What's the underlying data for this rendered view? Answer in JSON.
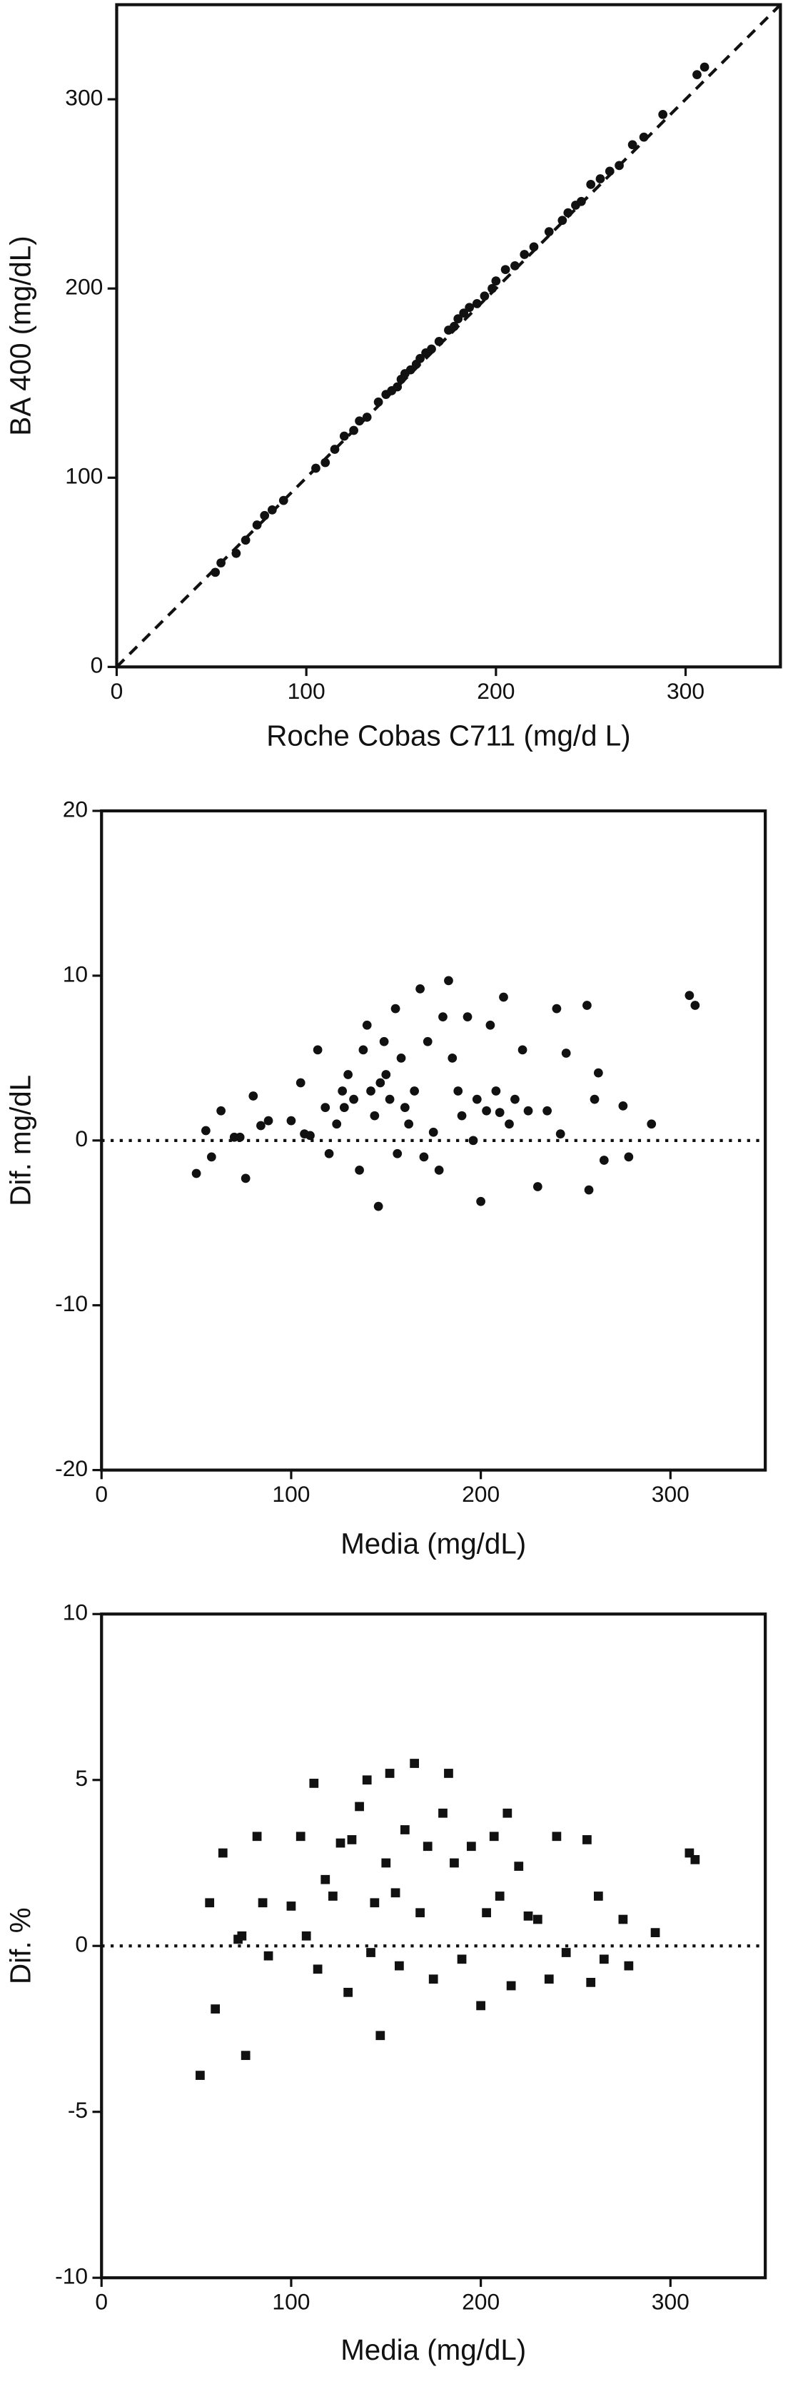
{
  "chart_data": [
    {
      "type": "scatter",
      "xlabel": "Roche Cobas C711 (mg/d L)",
      "ylabel": "BA  400 (mg/dL)",
      "marker": "circle",
      "color": "#111111",
      "reference_line": "identity",
      "xlim": [
        0,
        350
      ],
      "ylim": [
        0,
        350
      ],
      "xticks": [
        0,
        100,
        200,
        300
      ],
      "yticks": [
        0,
        100,
        200,
        300
      ],
      "x": [
        52,
        55,
        63,
        68,
        74,
        78,
        82,
        88,
        105,
        110,
        115,
        120,
        125,
        128,
        132,
        138,
        142,
        145,
        148,
        150,
        152,
        155,
        158,
        160,
        163,
        166,
        170,
        175,
        178,
        180,
        183,
        186,
        190,
        194,
        198,
        200,
        205,
        210,
        215,
        220,
        228,
        235,
        238,
        242,
        245,
        250,
        255,
        260,
        265,
        272,
        278,
        288,
        306,
        310
      ],
      "values": [
        50,
        55,
        60,
        67,
        75,
        80,
        83,
        88,
        105,
        108,
        115,
        122,
        125,
        130,
        132,
        140,
        144,
        146,
        148,
        152,
        155,
        157,
        160,
        163,
        166,
        168,
        172,
        178,
        180,
        184,
        187,
        190,
        192,
        196,
        200,
        204,
        210,
        212,
        218,
        222,
        230,
        236,
        240,
        244,
        246,
        255,
        258,
        262,
        265,
        276,
        280,
        292,
        313,
        317
      ]
    },
    {
      "type": "scatter",
      "xlabel": "Media (mg/dL)",
      "ylabel": "Dif. mg/dL",
      "marker": "circle",
      "color": "#111111",
      "reference_line": "zero",
      "xlim": [
        0,
        350
      ],
      "ylim": [
        -20,
        20
      ],
      "xticks": [
        0,
        100,
        200,
        300
      ],
      "yticks": [
        -20,
        -10,
        0,
        10,
        20
      ],
      "x": [
        50,
        55,
        58,
        63,
        70,
        73,
        76,
        80,
        84,
        88,
        100,
        105,
        107,
        110,
        114,
        118,
        120,
        124,
        127,
        128,
        130,
        133,
        136,
        138,
        140,
        142,
        144,
        146,
        147,
        149,
        150,
        152,
        155,
        156,
        158,
        160,
        162,
        165,
        168,
        170,
        172,
        175,
        178,
        180,
        183,
        185,
        188,
        190,
        193,
        196,
        198,
        200,
        203,
        205,
        208,
        210,
        212,
        215,
        218,
        222,
        225,
        230,
        235,
        240,
        242,
        245,
        256,
        257,
        260,
        262,
        265,
        275,
        278,
        290,
        310,
        313
      ],
      "values": [
        -2,
        0.6,
        -1,
        1.8,
        0.2,
        0.2,
        -2.3,
        2.7,
        0.9,
        1.2,
        1.2,
        3.5,
        0.4,
        0.3,
        5.5,
        2,
        -0.8,
        1,
        3,
        2,
        4,
        2.5,
        -1.8,
        5.5,
        7,
        3,
        1.5,
        -4,
        3.5,
        6,
        4,
        2.5,
        8,
        -0.8,
        5,
        2,
        1,
        3,
        9.2,
        -1,
        6,
        0.5,
        -1.8,
        7.5,
        9.7,
        5,
        3,
        1.5,
        7.5,
        0,
        2.5,
        -3.7,
        1.8,
        7,
        3,
        1.7,
        8.7,
        1,
        2.5,
        5.5,
        1.8,
        -2.8,
        1.8,
        8,
        0.4,
        5.3,
        8.2,
        -3,
        2.5,
        4.1,
        -1.2,
        2.1,
        -1,
        1,
        8.8,
        8.2
      ]
    },
    {
      "type": "scatter",
      "xlabel": "Media (mg/dL)",
      "ylabel": "Dif. %",
      "marker": "square",
      "color": "#111111",
      "reference_line": "zero",
      "xlim": [
        0,
        350
      ],
      "ylim": [
        -10,
        10
      ],
      "xticks": [
        0,
        100,
        200,
        300
      ],
      "yticks": [
        -10,
        -5,
        0,
        5,
        10
      ],
      "x": [
        52,
        57,
        60,
        64,
        72,
        74,
        76,
        82,
        85,
        88,
        100,
        105,
        108,
        112,
        114,
        118,
        122,
        126,
        130,
        132,
        136,
        140,
        142,
        144,
        147,
        150,
        152,
        155,
        157,
        160,
        165,
        168,
        172,
        175,
        180,
        183,
        186,
        190,
        195,
        200,
        203,
        207,
        210,
        214,
        216,
        220,
        225,
        230,
        236,
        240,
        245,
        256,
        258,
        262,
        265,
        275,
        278,
        292,
        310,
        313
      ],
      "values": [
        -3.9,
        1.3,
        -1.9,
        2.8,
        0.2,
        0.3,
        -3.3,
        3.3,
        1.3,
        -0.3,
        1.2,
        3.3,
        0.3,
        4.9,
        -0.7,
        2,
        1.5,
        3.1,
        -1.4,
        3.2,
        4.2,
        5,
        -0.2,
        1.3,
        -2.7,
        2.5,
        5.2,
        1.6,
        -0.6,
        3.5,
        5.5,
        1,
        3,
        -1,
        4,
        5.2,
        2.5,
        -0.4,
        3,
        -1.8,
        1,
        3.3,
        1.5,
        4,
        -1.2,
        2.4,
        0.9,
        0.8,
        -1,
        3.3,
        -0.2,
        3.2,
        -1.1,
        1.5,
        -0.4,
        0.8,
        -0.6,
        0.4,
        2.8,
        2.6
      ]
    }
  ]
}
